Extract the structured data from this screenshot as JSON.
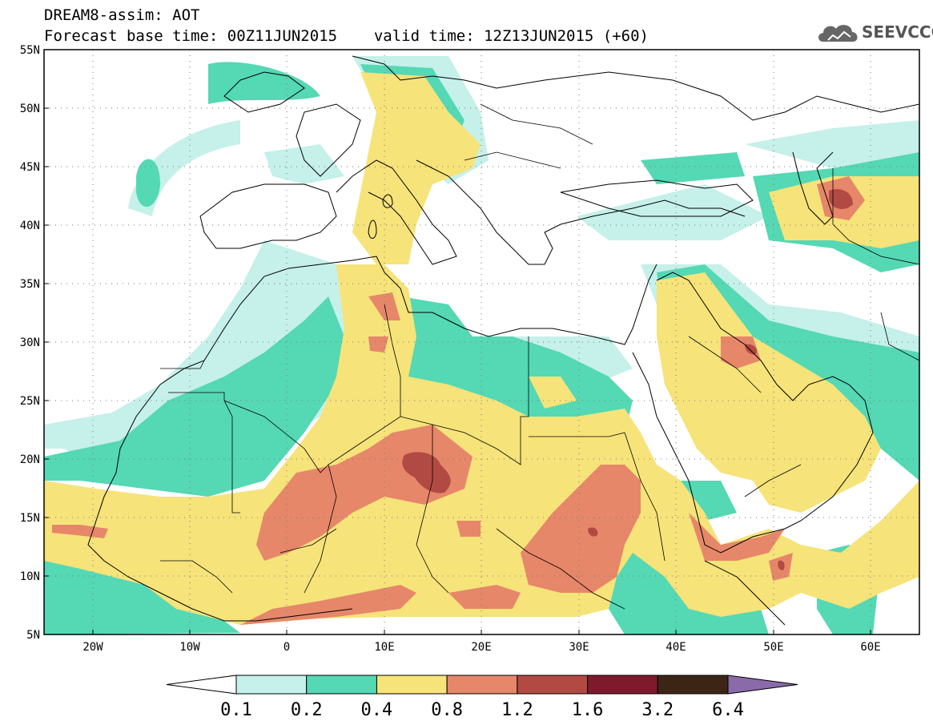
{
  "header": {
    "title": "DREAM8-assim: AOT",
    "base_time_label": "Forecast base time: 00Z11JUN2015",
    "valid_time_label": "valid time: 12Z13JUN2015 (+60)"
  },
  "logo": {
    "text": "SEEVCCC"
  },
  "map": {
    "lon_range": [
      -25,
      65
    ],
    "lat_range": [
      5,
      55
    ],
    "lat_ticks": [
      "55N",
      "50N",
      "45N",
      "40N",
      "35N",
      "30N",
      "25N",
      "20N",
      "15N",
      "10N",
      "5N"
    ],
    "lon_ticks": [
      "20W",
      "10W",
      "0",
      "10E",
      "20E",
      "30E",
      "40E",
      "50E",
      "60E"
    ]
  },
  "colorbar": {
    "levels": [
      "0.1",
      "0.2",
      "0.4",
      "0.8",
      "1.2",
      "1.6",
      "3.2",
      "6.4"
    ],
    "colors": [
      "#ffffff",
      "#c6f0ea",
      "#55d8b4",
      "#f6e37a",
      "#e6876a",
      "#b24a44",
      "#7e1a2c",
      "#3d2516",
      "#8a6aa8"
    ]
  }
}
